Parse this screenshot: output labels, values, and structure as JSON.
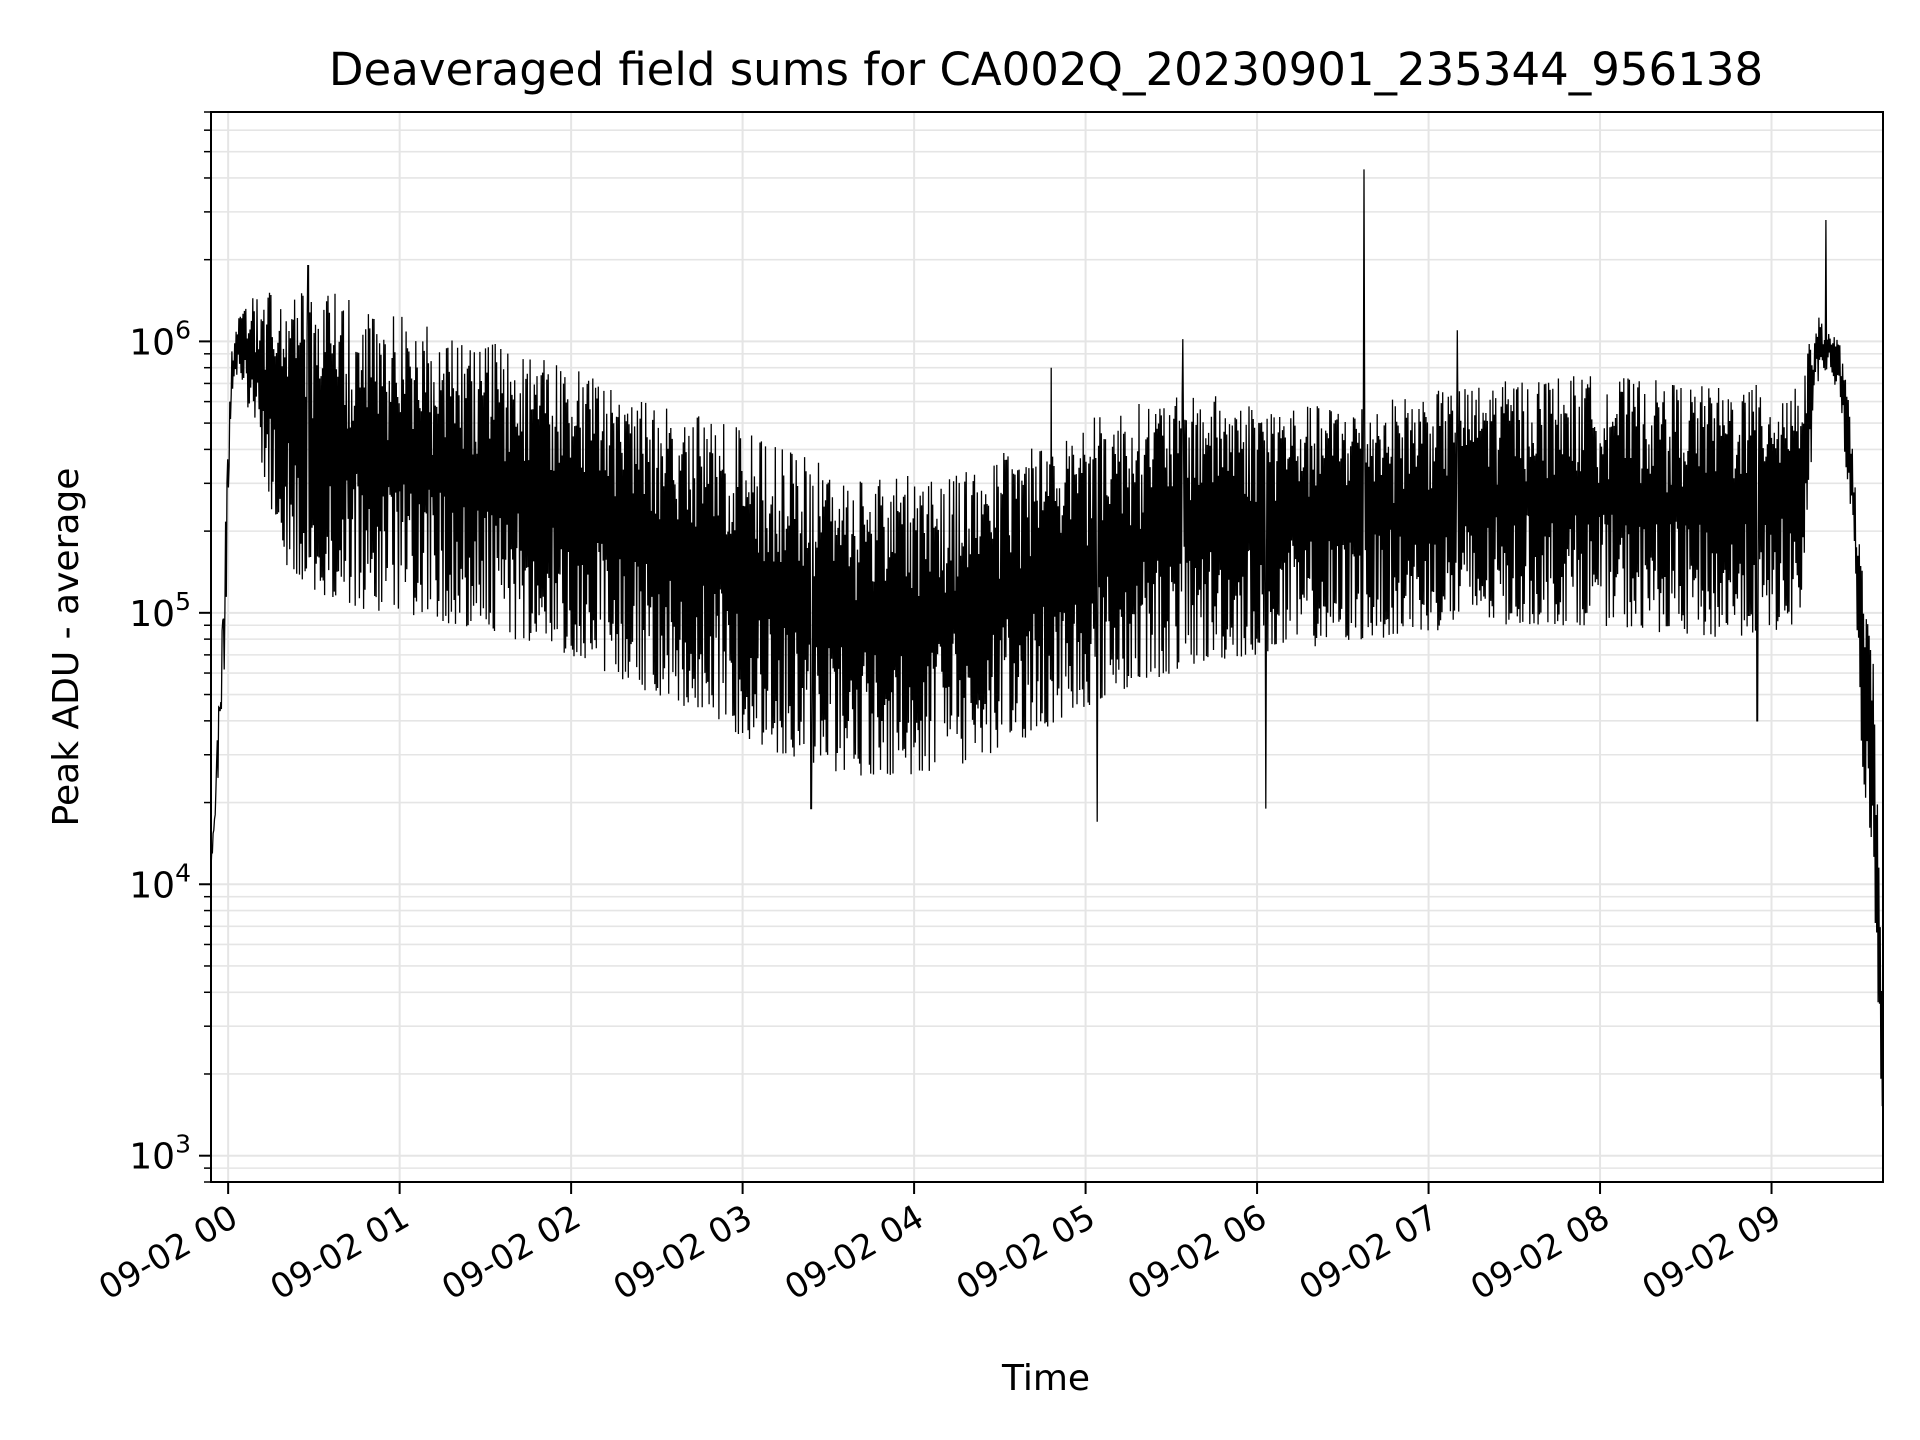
{
  "chart_data": {
    "type": "line",
    "title": "Deaveraged field sums for CA002Q_20230901_235344_956138",
    "xlabel": "Time",
    "ylabel": "Peak ADU - average",
    "yscale": "log",
    "ylim": [
      800,
      7000000
    ],
    "xlim": [
      "2023-09-01T23:54:00",
      "2023-09-02T09:39:00"
    ],
    "grid": true,
    "line_color": "#000000",
    "grid_color": "#e5e5e5",
    "x_ticks": [
      {
        "t": "2023-09-02T00:00:00",
        "label": "09-02 00"
      },
      {
        "t": "2023-09-02T01:00:00",
        "label": "09-02 01"
      },
      {
        "t": "2023-09-02T02:00:00",
        "label": "09-02 02"
      },
      {
        "t": "2023-09-02T03:00:00",
        "label": "09-02 03"
      },
      {
        "t": "2023-09-02T04:00:00",
        "label": "09-02 04"
      },
      {
        "t": "2023-09-02T05:00:00",
        "label": "09-02 05"
      },
      {
        "t": "2023-09-02T06:00:00",
        "label": "09-02 06"
      },
      {
        "t": "2023-09-02T07:00:00",
        "label": "09-02 07"
      },
      {
        "t": "2023-09-02T08:00:00",
        "label": "09-02 08"
      },
      {
        "t": "2023-09-02T09:00:00",
        "label": "09-02 09"
      }
    ],
    "y_ticks": [
      {
        "value": 1000,
        "base": "10",
        "exp": "3"
      },
      {
        "value": 10000,
        "base": "10",
        "exp": "4"
      },
      {
        "value": 100000,
        "base": "10",
        "exp": "5"
      },
      {
        "value": 1000000,
        "base": "10",
        "exp": "6"
      }
    ],
    "envelope": {
      "x": [
        "2023-09-01T23:54:00",
        "2023-09-01T23:56:00",
        "2023-09-01T23:58:00",
        "2023-09-02T00:01:00",
        "2023-09-02T00:04:00",
        "2023-09-02T00:10:00",
        "2023-09-02T00:20:00",
        "2023-09-02T00:30:00",
        "2023-09-02T00:40:00",
        "2023-09-02T00:50:00",
        "2023-09-02T01:00:00",
        "2023-09-02T01:20:00",
        "2023-09-02T01:40:00",
        "2023-09-02T02:00:00",
        "2023-09-02T02:20:00",
        "2023-09-02T02:40:00",
        "2023-09-02T03:00:00",
        "2023-09-02T03:20:00",
        "2023-09-02T03:40:00",
        "2023-09-02T04:00:00",
        "2023-09-02T04:20:00",
        "2023-09-02T04:40:00",
        "2023-09-02T05:00:00",
        "2023-09-02T05:20:00",
        "2023-09-02T05:40:00",
        "2023-09-02T06:00:00",
        "2023-09-02T06:20:00",
        "2023-09-02T06:40:00",
        "2023-09-02T07:00:00",
        "2023-09-02T07:20:00",
        "2023-09-02T07:40:00",
        "2023-09-02T08:00:00",
        "2023-09-02T08:20:00",
        "2023-09-02T08:40:00",
        "2023-09-02T09:00:00",
        "2023-09-02T09:10:00",
        "2023-09-02T09:16:00",
        "2023-09-02T09:20:00",
        "2023-09-02T09:24:00",
        "2023-09-02T09:28:00",
        "2023-09-02T09:32:00",
        "2023-09-02T09:36:00",
        "2023-09-02T09:39:00"
      ],
      "high": [
        12000,
        30000,
        110000,
        900000,
        1300000,
        1500000,
        1550000,
        1500000,
        1500000,
        1300000,
        1250000,
        1050000,
        950000,
        800000,
        650000,
        550000,
        480000,
        380000,
        330000,
        320000,
        350000,
        420000,
        520000,
        600000,
        650000,
        600000,
        580000,
        600000,
        650000,
        700000,
        750000,
        750000,
        720000,
        680000,
        700000,
        750000,
        1250000,
        1100000,
        1000000,
        500000,
        130000,
        60000,
        3000
      ],
      "low": [
        11000,
        20000,
        28000,
        600000,
        800000,
        400000,
        150000,
        120000,
        110000,
        100000,
        100000,
        90000,
        80000,
        70000,
        55000,
        45000,
        35000,
        28000,
        25000,
        25000,
        28000,
        35000,
        45000,
        55000,
        65000,
        70000,
        75000,
        80000,
        85000,
        90000,
        90000,
        90000,
        85000,
        80000,
        85000,
        90000,
        700000,
        800000,
        600000,
        200000,
        25000,
        8000,
        1200
      ]
    },
    "spikes": [
      {
        "t": "2023-09-02T06:37:30",
        "value": 4300000
      },
      {
        "t": "2023-09-02T09:19:00",
        "value": 2800000
      },
      {
        "t": "2023-09-02T00:28:00",
        "value": 1900000
      },
      {
        "t": "2023-09-02T05:34:00",
        "value": 1020000
      },
      {
        "t": "2023-09-02T07:10:00",
        "value": 1100000
      },
      {
        "t": "2023-09-02T04:48:00",
        "value": 800000
      },
      {
        "t": "2023-09-02T05:04:00",
        "value": 17000
      },
      {
        "t": "2023-09-02T06:03:00",
        "value": 19000
      },
      {
        "t": "2023-09-02T08:55:00",
        "value": 40000
      },
      {
        "t": "2023-09-02T03:24:00",
        "value": 19000
      }
    ]
  }
}
